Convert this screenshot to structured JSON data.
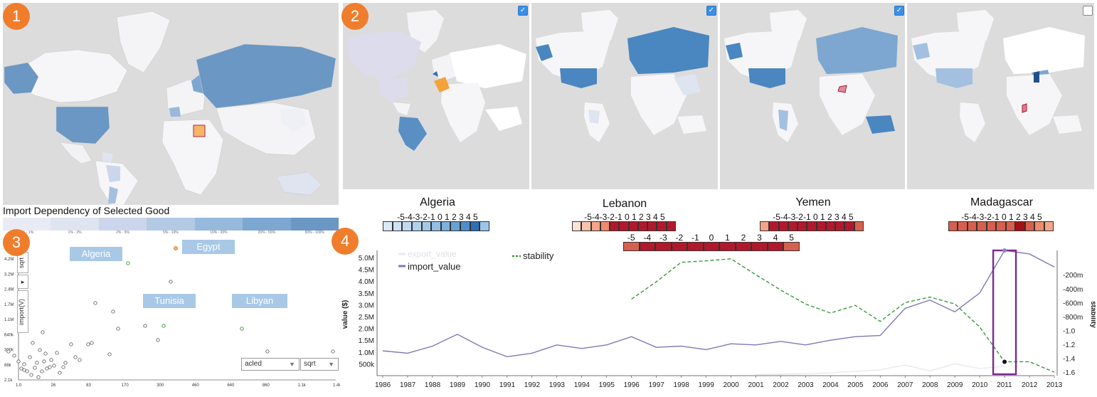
{
  "badges": [
    "1",
    "2",
    "3",
    "4"
  ],
  "panel1": {
    "legend_title": "Import Dependency of Selected Good",
    "legend_colors": [
      "#eaeaf4",
      "#dfe4f1",
      "#cbd6ec",
      "#b2cae4",
      "#97b9db",
      "#7da7d0",
      "#6a97c4"
    ],
    "legend_ticks": [
      "0% - 1%",
      "1% - 2%",
      "2% - 5%",
      "5% - 10%",
      "10% - 20%",
      "20% - 50%",
      "50% - 100%"
    ]
  },
  "panel2": {
    "maps": [
      {
        "name": "map-algeria",
        "checked": true,
        "check": "✓"
      },
      {
        "name": "map-lebanon",
        "checked": true,
        "check": "✓"
      },
      {
        "name": "map-yemen",
        "checked": true,
        "check": "✓"
      },
      {
        "name": "map-madagascar",
        "checked": false,
        "check": ""
      }
    ]
  },
  "countries": {
    "algeria": {
      "name": "Algeria",
      "numbers": "-5-4-3-2-1 0 1 2 3 4 5"
    },
    "lebanon": {
      "name": "Lebanon",
      "numbers": "-5-4-3-2-1 0 1 2 3 4 5"
    },
    "yemen": {
      "name": "Yemen",
      "numbers": "-5-4-3-2-1 0 1 2 3 4 5"
    },
    "madagascar": {
      "name": "Madagascar",
      "numbers": "-5-4-3-2-1 0 1 2 3 4 5"
    }
  },
  "stability_scale": {
    "ticks": [
      "-5",
      "-4",
      "-3",
      "-2",
      "-1",
      "0",
      "1",
      "2",
      "3",
      "4",
      "5"
    ],
    "colors": {
      "algeria": [
        "#dbe9f6",
        "#cfe2f3",
        "#c2daf0",
        "#b3d1ec",
        "#a4c8e7",
        "#94bee2",
        "#7fb1dc",
        "#68a2d4",
        "#4e8ecb",
        "#2f6fb7",
        "#9ac6e8"
      ],
      "lebanon": [
        "#fde2d6",
        "#f9c2ab",
        "#f4a488",
        "#ef8a6a",
        "#b2182b",
        "#b2182b",
        "#b2182b",
        "#b2182b",
        "#b2182b",
        "#b2182b",
        "#b2182b"
      ],
      "yemen": [
        "#f4a488",
        "#b2182b",
        "#b2182b",
        "#b2182b",
        "#b2182b",
        "#b2182b",
        "#b2182b",
        "#b2182b",
        "#b2182b",
        "#b2182b",
        "#d6604d"
      ],
      "madagascar": [
        "#d6604d",
        "#d6604d",
        "#d6604d",
        "#d6604d",
        "#d6604d",
        "#d6604d",
        "#d6604d",
        "#a50f15",
        "#d6604d",
        "#ef8a6a",
        "#f4a488"
      ],
      "center": [
        "#d6604d",
        "#b2182b",
        "#b2182b",
        "#b2182b",
        "#b2182b",
        "#b2182b",
        "#b2182b",
        "#b2182b",
        "#b2182b",
        "#b2182b",
        "#d6604d"
      ]
    }
  },
  "panel3": {
    "scale_btn": "sqrt",
    "axis_btn": "import(V)",
    "arrow": "▸",
    "x_select": {
      "value": "acled",
      "caret": "▼"
    },
    "x_scale": {
      "value": "sqrt",
      "caret": "▼"
    },
    "y_ticks": [
      "4.2M",
      "3.2M",
      "2.4M",
      "1.7M",
      "1.1M",
      "640k",
      "300k",
      "68k",
      "2.1k"
    ],
    "x_ticks": [
      "1.0",
      "26",
      "83",
      "170",
      "300",
      "460",
      "640",
      "860",
      "1.1k",
      "1.4k"
    ],
    "labels": [
      "Algeria",
      "Egypt",
      "Tunisia",
      "Libyan"
    ]
  },
  "chart_data": {
    "type": "line",
    "x": [
      1986,
      1987,
      1988,
      1989,
      1990,
      1991,
      1992,
      1993,
      1994,
      1995,
      1996,
      1997,
      1998,
      1999,
      2000,
      2001,
      2002,
      2003,
      2004,
      2005,
      2006,
      2007,
      2008,
      2009,
      2010,
      2011,
      2012,
      2013
    ],
    "x_ticks": [
      "1986",
      "1987",
      "1988",
      "1989",
      "1990",
      "1991",
      "1992",
      "1993",
      "1994",
      "1995",
      "1996",
      "1997",
      "1998",
      "1999",
      "2000",
      "2001",
      "2002",
      "2003",
      "2004",
      "2005",
      "2006",
      "2007",
      "2008",
      "2009",
      "2010",
      "2011",
      "2012",
      "2013"
    ],
    "series": [
      {
        "name": "import_value",
        "color": "#7f78b8",
        "values": [
          1.05,
          0.95,
          1.25,
          1.75,
          1.2,
          0.8,
          0.95,
          1.3,
          1.15,
          1.3,
          1.65,
          1.2,
          1.25,
          1.1,
          1.35,
          1.3,
          1.45,
          1.3,
          1.5,
          1.65,
          1.7,
          2.85,
          3.2,
          2.7,
          3.5,
          5.3,
          5.15,
          4.6
        ]
      },
      {
        "name": "export_value",
        "color": "#e8e8f0",
        "values": [
          null,
          null,
          null,
          null,
          null,
          null,
          null,
          null,
          null,
          null,
          null,
          null,
          null,
          null,
          null,
          0.05,
          0.06,
          0.08,
          0.12,
          0.18,
          0.25,
          0.45,
          0.2,
          0.5,
          0.3,
          0.4,
          null,
          null
        ]
      },
      {
        "name": "stability",
        "color": "#3a9a3a",
        "axis": "right",
        "values": [
          null,
          null,
          null,
          null,
          null,
          null,
          null,
          null,
          null,
          null,
          -0.55,
          -0.3,
          -0.02,
          0.0,
          0.03,
          -0.2,
          -0.42,
          -0.62,
          -0.75,
          -0.64,
          -0.87,
          -0.6,
          -0.52,
          -0.62,
          -0.95,
          -1.45,
          -1.45,
          -1.6
        ]
      }
    ],
    "ylabel": "value ($)",
    "y2label": "stability",
    "ylim": [
      0,
      5.3
    ],
    "y_ticks": [
      "5.0M",
      "4.5M",
      "4.0M",
      "3.5M",
      "3.0M",
      "2.5M",
      "2.0M",
      "1.5M",
      "1.0M",
      "500k"
    ],
    "y_tick_values": [
      5.0,
      4.5,
      4.0,
      3.5,
      3.0,
      2.5,
      2.0,
      1.5,
      1.0,
      0.5
    ],
    "y2lim": [
      -1.65,
      0.15
    ],
    "y2_ticks": [
      "-200m",
      "-400m",
      "-600m",
      "-800m",
      "-1.0",
      "-1.2",
      "-1.4",
      "-1.6"
    ],
    "y2_tick_values": [
      -0.2,
      -0.4,
      -0.6,
      -0.8,
      -1.0,
      -1.2,
      -1.4,
      -1.6
    ],
    "legend": [
      "export_value",
      "import_value",
      "stability"
    ],
    "highlight_year": 2011
  }
}
